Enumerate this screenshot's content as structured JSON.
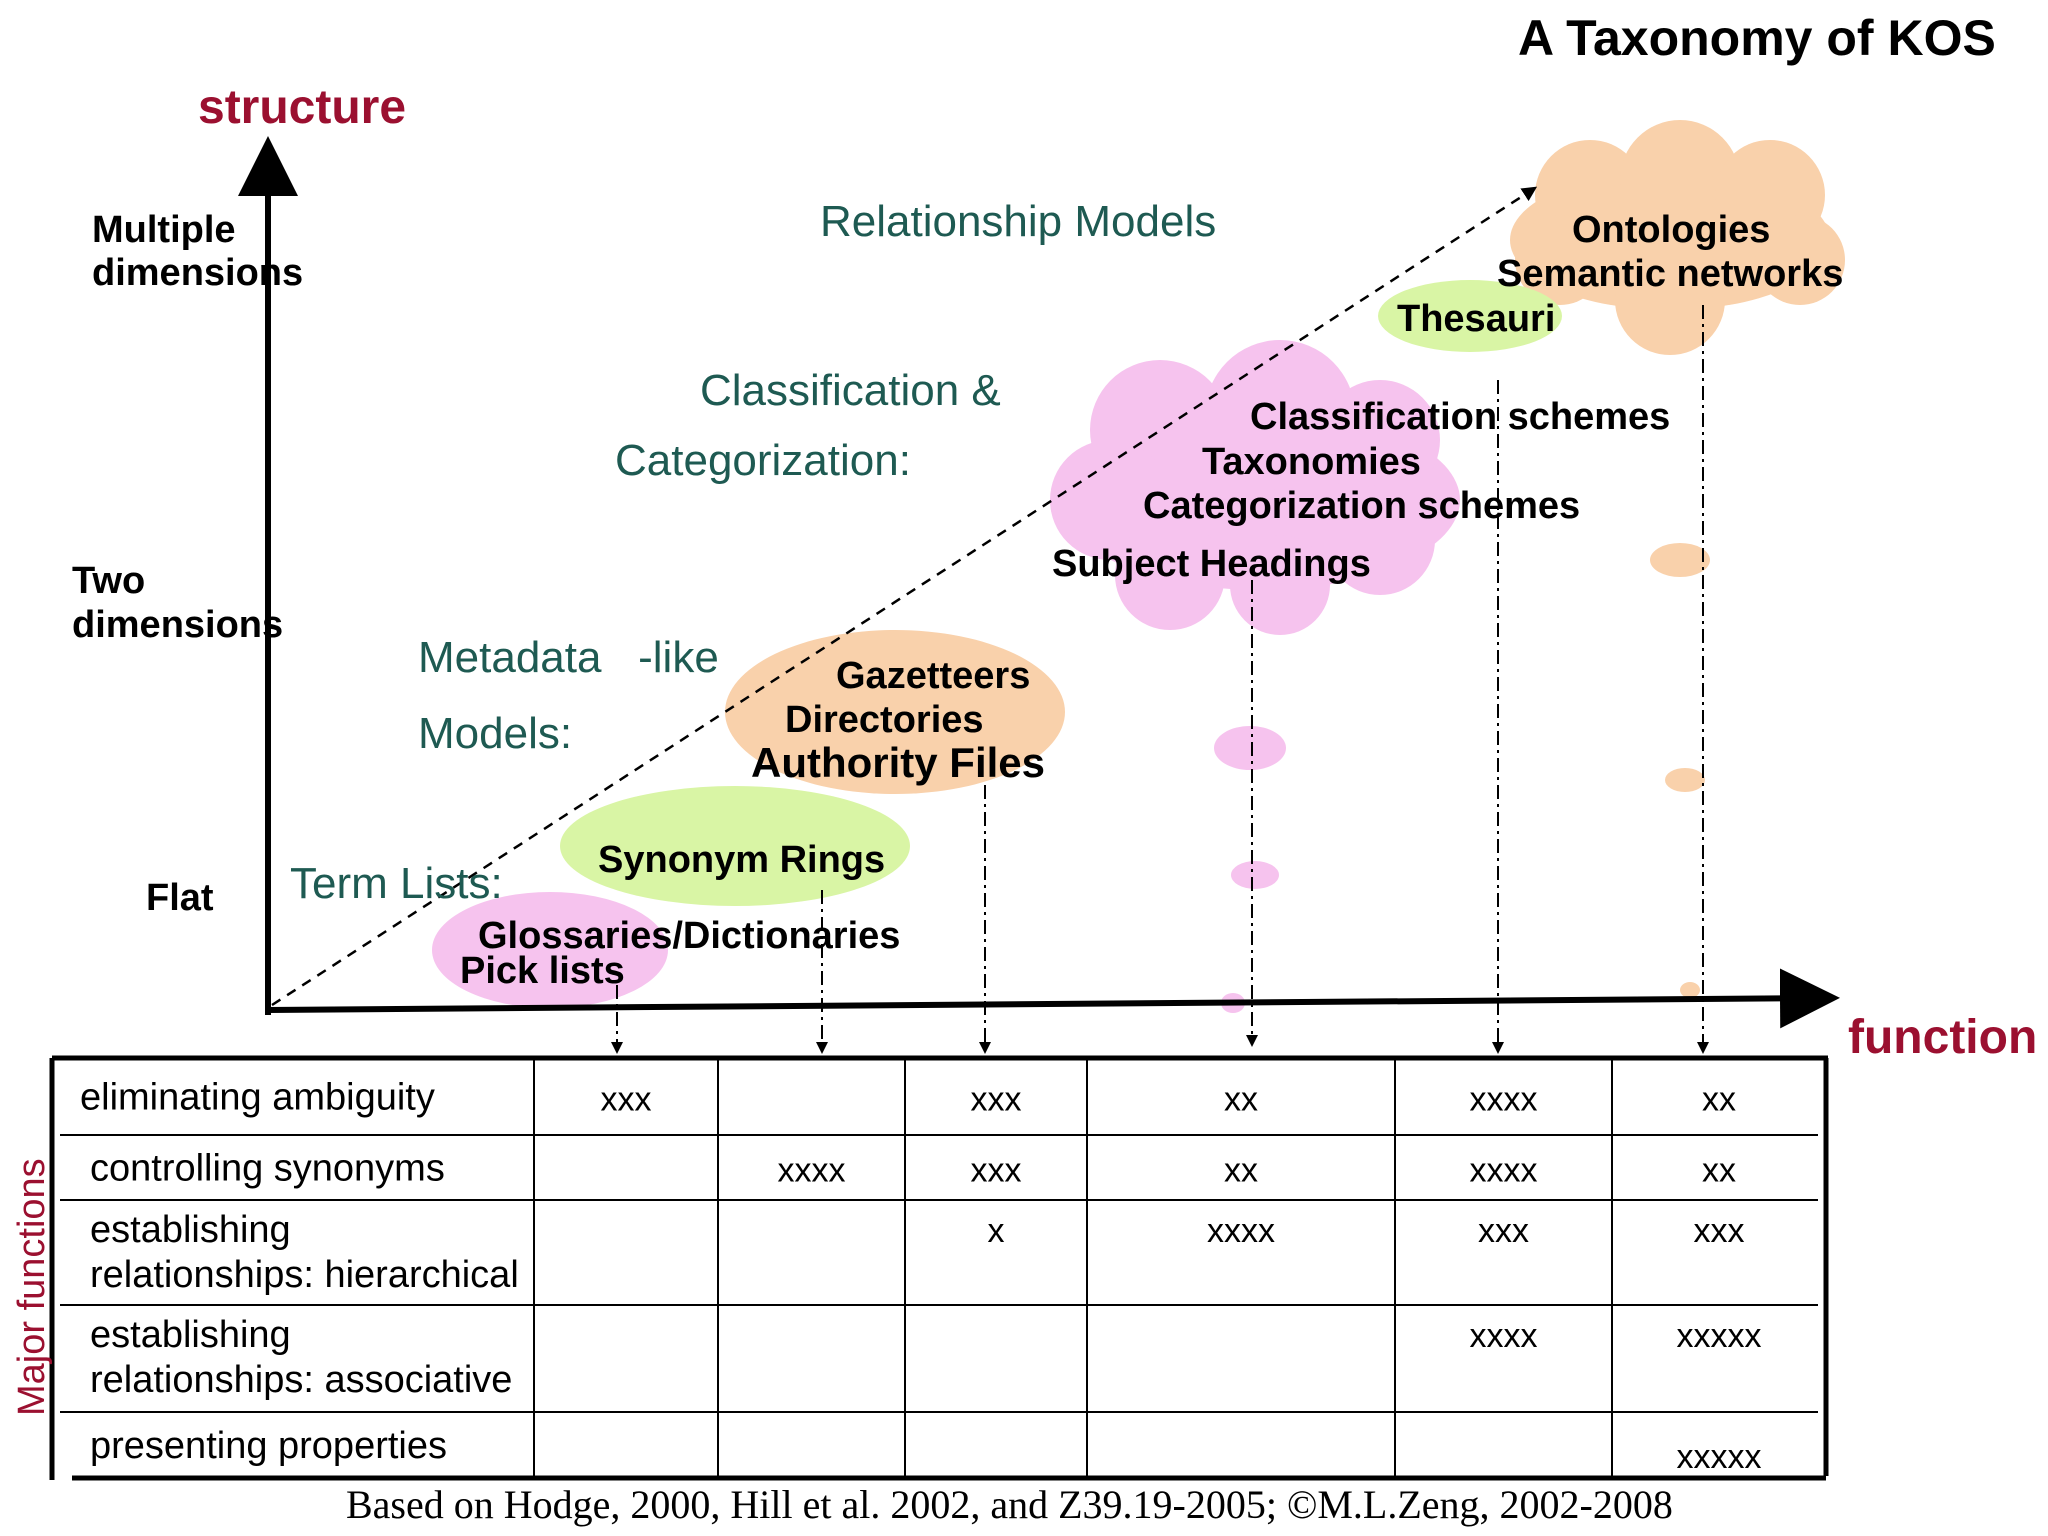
{
  "title": "A Taxonomy of KOS",
  "axes": {
    "y_label": "structure",
    "x_label": "function",
    "levels": {
      "multiple": [
        "Multiple",
        "dimensions"
      ],
      "two": [
        "Two",
        "dimensions"
      ],
      "flat": "Flat"
    }
  },
  "categories": {
    "term_lists": "Term Lists:",
    "metadata": [
      "Metadata   -like",
      "Models:"
    ],
    "classification": [
      "Classification &",
      "Categorization:"
    ],
    "relationship": "Relationship Models"
  },
  "kos_types": {
    "glossaries": "Glossaries/Dictionaries",
    "pick_lists": "Pick lists",
    "synonym_rings": "Synonym Rings",
    "gazetteers": "Gazetteers",
    "directories": "Directories",
    "authority_files": "Authority Files",
    "subject_headings": "Subject Headings",
    "classification_schemes": "Classification schemes",
    "taxonomies": "Taxonomies",
    "categorization_schemes": "Categorization schemes",
    "thesauri": "Thesauri",
    "ontologies": "Ontologies",
    "semantic_networks": "Semantic networks"
  },
  "table": {
    "side_label": "Major functions",
    "rows": [
      {
        "label": [
          "eliminating ambiguity"
        ],
        "cells": [
          "xxx",
          "",
          "xxx",
          "xx",
          "xxxx",
          "xx"
        ]
      },
      {
        "label": [
          "controlling synonyms"
        ],
        "cells": [
          "",
          "xxxx",
          "xxx",
          "xx",
          "xxxx",
          "xx"
        ]
      },
      {
        "label": [
          "establishing",
          "relationships: hierarchical"
        ],
        "cells": [
          "",
          "",
          "x",
          "xxxx",
          "xxx",
          "xxx"
        ]
      },
      {
        "label": [
          "establishing",
          "relationships: associative"
        ],
        "cells": [
          "",
          "",
          "",
          "",
          "xxxx",
          "xxxxx"
        ]
      },
      {
        "label": [
          "presenting properties"
        ],
        "cells": [
          "",
          "",
          "",
          "",
          "",
          "xxxxx"
        ]
      }
    ]
  },
  "source": "Based on Hodge, 2000, Hill et al. 2002, and Z39.19-2005; ©M.L.Zeng, 2002-2008",
  "colors": {
    "pink": "#f6c3ee",
    "green": "#d9f5a5",
    "peach": "#f9d1ab",
    "category_text": "#1e5a52",
    "axis_label": "#9b1030"
  }
}
